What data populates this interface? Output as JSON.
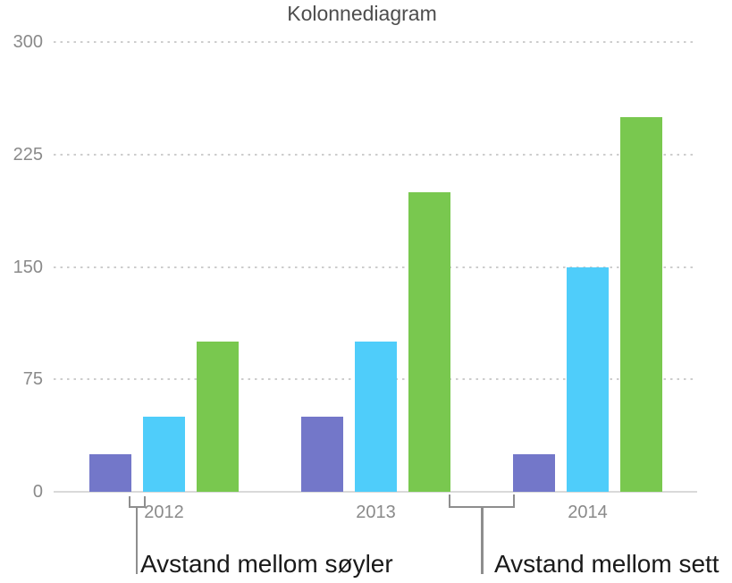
{
  "chart_data": {
    "type": "bar",
    "title": "Kolonnediagram",
    "categories": [
      "2012",
      "2013",
      "2014"
    ],
    "series": [
      {
        "name": "purple-series",
        "color": "#7377C9",
        "values": [
          25,
          50,
          25
        ]
      },
      {
        "name": "cyan-series",
        "color": "#4FCDFA",
        "values": [
          50,
          100,
          150
        ]
      },
      {
        "name": "green-series",
        "color": "#79C84F",
        "values": [
          100,
          200,
          250
        ]
      }
    ],
    "ylim": [
      0,
      300
    ],
    "yticks": [
      0,
      75,
      150,
      225,
      300
    ],
    "xlabel": "",
    "ylabel": "",
    "grid": "horizontal-dotted",
    "legend": "none"
  },
  "annotations": {
    "bar_gap_label": "Avstand mellom søyler",
    "set_gap_label": "Avstand mellom sett"
  },
  "colors": {
    "grid": "#cdcdcd",
    "axis": "#d9d9d9",
    "tick_text": "#8a8a8a",
    "title_text": "#4d4d4d",
    "annotation_text": "#1a1a1a",
    "bracket": "#8e8e8e"
  }
}
